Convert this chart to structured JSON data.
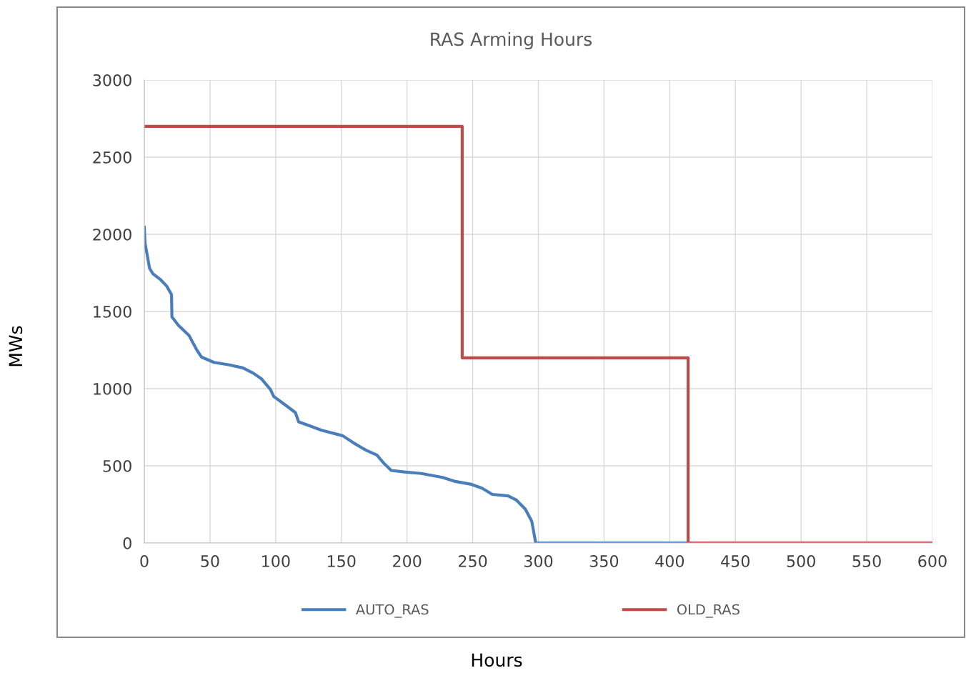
{
  "chart_data": {
    "type": "line",
    "title": "RAS Arming Hours",
    "xlabel": "Hours",
    "ylabel": "MWs",
    "xlim": [
      0,
      600
    ],
    "ylim": [
      0,
      3000
    ],
    "xticks": [
      0,
      50,
      100,
      150,
      200,
      250,
      300,
      350,
      400,
      450,
      500,
      550,
      600
    ],
    "yticks": [
      0,
      500,
      1000,
      1500,
      2000,
      2500,
      3000
    ],
    "grid": true,
    "legend": "bottom",
    "marker": "none",
    "line_style": "solid",
    "series": [
      {
        "name": "AUTO_RAS",
        "color": "#4a7ebb",
        "x": [
          0,
          0.5,
          2,
          4,
          6.5,
          12.5,
          17,
          20.7,
          21,
          26,
          34,
          40,
          43.5,
          53,
          64,
          75,
          83,
          89,
          96,
          98.5,
          108,
          115,
          117.5,
          124,
          135,
          151,
          159,
          169,
          177,
          182,
          188,
          198,
          211,
          227,
          236,
          249,
          257,
          265,
          277,
          283,
          290,
          295,
          298,
          415
        ],
        "values": [
          2045,
          1945,
          1875,
          1780,
          1745,
          1705,
          1665,
          1610,
          1465,
          1410,
          1345,
          1250,
          1205,
          1170,
          1155,
          1135,
          1100,
          1065,
          995,
          950,
          890,
          845,
          785,
          765,
          730,
          695,
          650,
          600,
          570,
          520,
          470,
          460,
          450,
          425,
          400,
          380,
          355,
          315,
          305,
          280,
          220,
          140,
          0,
          0
        ]
      },
      {
        "name": "OLD_RAS",
        "color": "#be4b48",
        "type": "step",
        "x": [
          0,
          242,
          414,
          600
        ],
        "values": [
          2700,
          1200,
          0,
          0
        ]
      }
    ]
  }
}
